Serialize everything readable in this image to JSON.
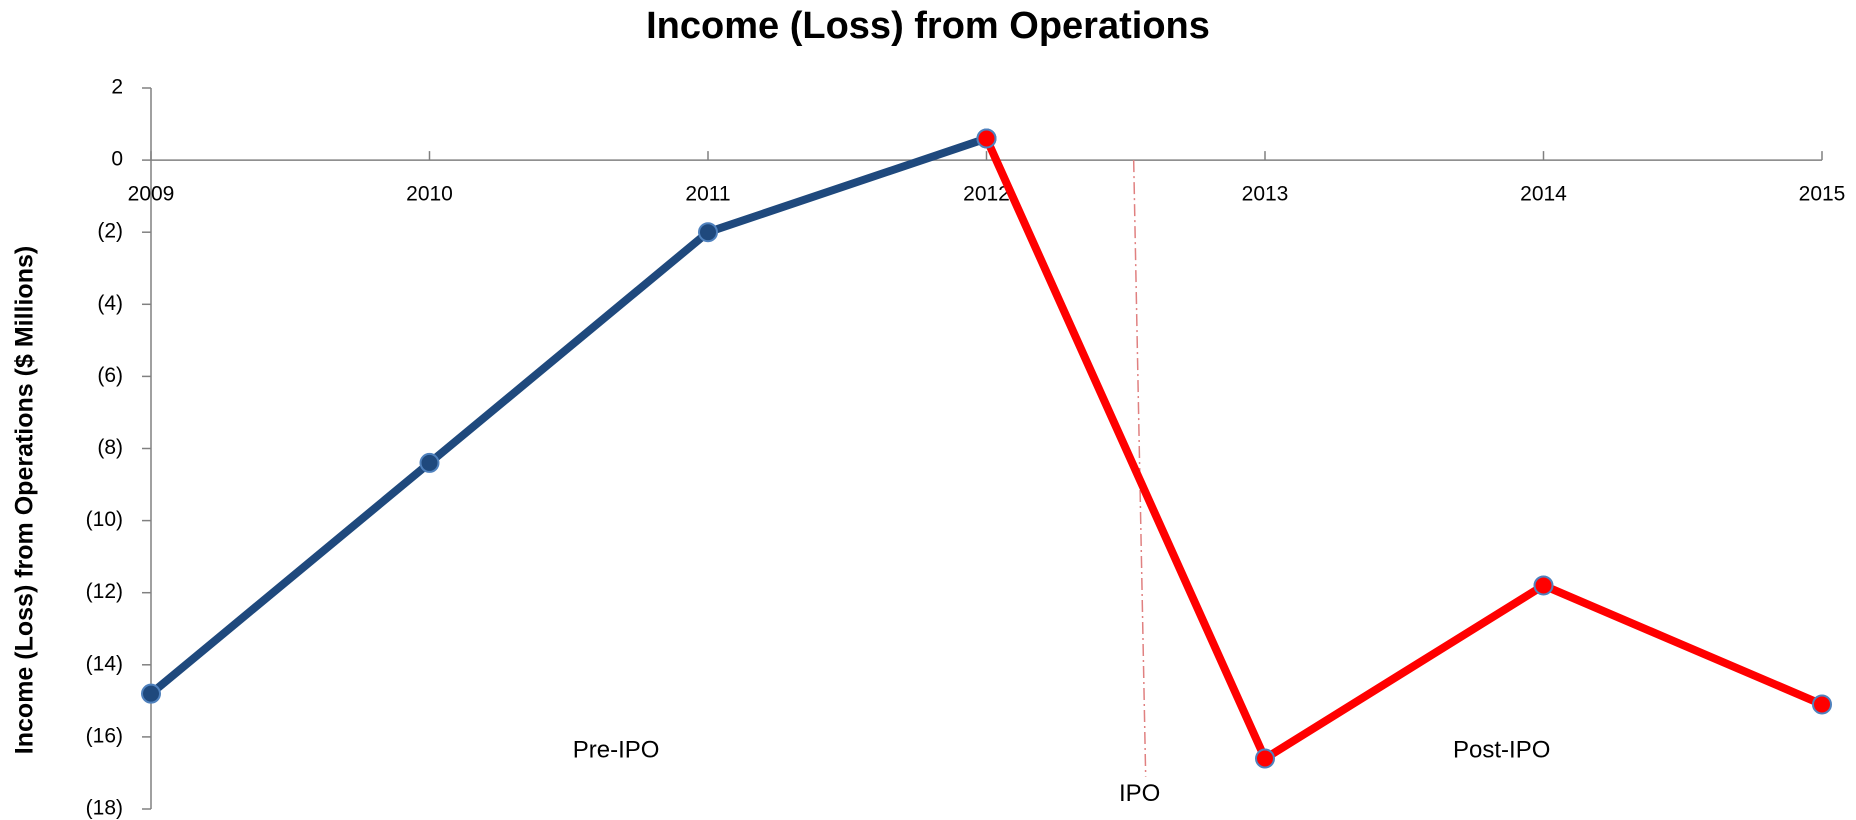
{
  "chart_data": {
    "type": "line",
    "title": "Income (Loss) from Operations",
    "y_label": "Income (Loss) from Operations ($ Millions)",
    "x": [
      2009,
      2010,
      2011,
      2012,
      2013,
      2014,
      2015
    ],
    "series": [
      {
        "color": "#1f497d",
        "values": [
          -14.8,
          -8.4,
          -2.0,
          0.6,
          null,
          null,
          null
        ]
      },
      {
        "color": "#ff0000",
        "values": [
          null,
          null,
          null,
          0.6,
          -16.6,
          -11.8,
          -15.1
        ]
      }
    ],
    "xlim": [
      2009,
      2015
    ],
    "xticks": [
      2009,
      2010,
      2011,
      2012,
      2013,
      2014,
      2015
    ],
    "ylim": [
      -18,
      2
    ],
    "yticks": [
      2,
      0,
      {
        "value": -2,
        "label": "(2)"
      },
      {
        "value": -4,
        "label": "(4)"
      },
      {
        "value": -6,
        "label": "(6)"
      },
      {
        "value": -8,
        "label": "(8)"
      },
      {
        "value": -10,
        "label": "(10)"
      },
      {
        "value": -12,
        "label": "(12)"
      },
      {
        "value": -14,
        "label": "(14)"
      },
      {
        "value": -16,
        "label": "(16)"
      },
      {
        "value": -18,
        "label": "(18)"
      }
    ],
    "annotations": [
      {
        "text": "Pre-IPO",
        "x": 2010.67,
        "y": -16.4
      },
      {
        "text": "IPO",
        "x": 2012.55,
        "y": -17.6
      },
      {
        "text": "Post-IPO",
        "x": 2013.85,
        "y": -16.4
      }
    ],
    "grid": false
  }
}
